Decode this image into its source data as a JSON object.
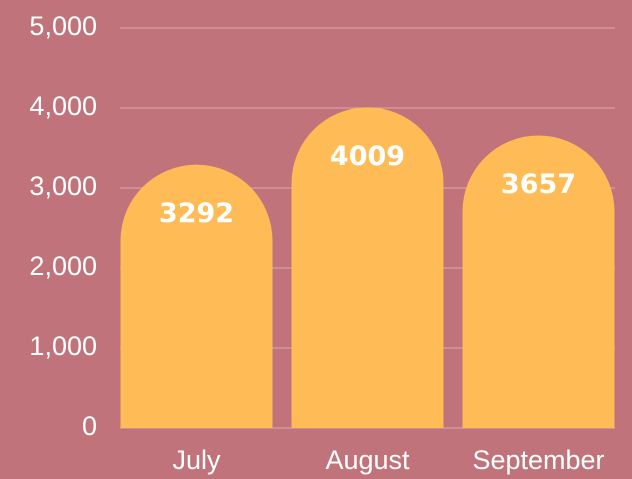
{
  "chart_data": {
    "type": "bar",
    "categories": [
      "July",
      "August",
      "September"
    ],
    "values": [
      3292,
      4009,
      3657
    ],
    "color": "#ffbb55",
    "ylim": [
      0,
      5000
    ],
    "yticks": [
      0,
      {
        "value": 1000,
        "label": "1,000"
      },
      {
        "value": 2000,
        "label": "2,000"
      },
      {
        "value": 3000,
        "label": "3,000"
      },
      {
        "value": 4000,
        "label": "4,000"
      },
      {
        "value": 5000,
        "label": "5,000"
      }
    ],
    "grid": true
  }
}
